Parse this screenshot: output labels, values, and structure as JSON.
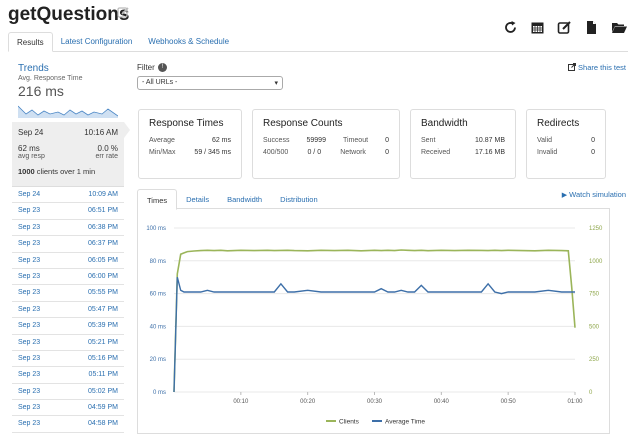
{
  "page": {
    "title": "getQuestions"
  },
  "icons": {
    "title_edit": "edit-icon",
    "toolbar": [
      "refresh-icon",
      "calendar-icon",
      "edit-icon",
      "document-icon",
      "folder-open-icon"
    ]
  },
  "tabs": [
    {
      "label": "Results",
      "active": true
    },
    {
      "label": "Latest Configuration",
      "active": false
    },
    {
      "label": "Webhooks & Schedule",
      "active": false
    }
  ],
  "sidebar": {
    "trends_title": "Trends",
    "trends_subtitle": "Avg. Response Time",
    "trends_value": "216 ms",
    "selected": {
      "date": "Sep 24",
      "time": "10:16 AM",
      "avg_resp": "62 ms",
      "avg_resp_label": "avg resp",
      "err_rate": "0.0 %",
      "err_rate_label": "err rate",
      "clients_bold": "1000",
      "clients_rest": " clients over 1 min"
    },
    "runs": [
      {
        "date": "Sep 24",
        "time": "10:09 AM"
      },
      {
        "date": "Sep 23",
        "time": "06:51 PM"
      },
      {
        "date": "Sep 23",
        "time": "06:38 PM"
      },
      {
        "date": "Sep 23",
        "time": "06:37 PM"
      },
      {
        "date": "Sep 23",
        "time": "06:05 PM"
      },
      {
        "date": "Sep 23",
        "time": "06:00 PM"
      },
      {
        "date": "Sep 23",
        "time": "05:55 PM"
      },
      {
        "date": "Sep 23",
        "time": "05:47 PM"
      },
      {
        "date": "Sep 23",
        "time": "05:39 PM"
      },
      {
        "date": "Sep 23",
        "time": "05:21 PM"
      },
      {
        "date": "Sep 23",
        "time": "05:16 PM"
      },
      {
        "date": "Sep 23",
        "time": "05:11 PM"
      },
      {
        "date": "Sep 23",
        "time": "05:02 PM"
      },
      {
        "date": "Sep 23",
        "time": "04:59 PM"
      },
      {
        "date": "Sep 23",
        "time": "04:58 PM"
      }
    ]
  },
  "filter": {
    "label": "Filter",
    "selected": "- All URLs -"
  },
  "share_label": "Share this test",
  "cards": {
    "response_times": {
      "title": "Response Times",
      "average_label": "Average",
      "average": "62 ms",
      "minmax_label": "Min/Max",
      "minmax": "59 / 345 ms"
    },
    "response_counts": {
      "title": "Response Counts",
      "success_label": "Success",
      "success": "59999",
      "timeout_label": "Timeout",
      "timeout": "0",
      "c400_label": "400/500",
      "c400": "0 / 0",
      "network_label": "Network",
      "network": "0"
    },
    "bandwidth": {
      "title": "Bandwidth",
      "sent_label": "Sent",
      "sent": "10.87 MB",
      "received_label": "Received",
      "received": "17.16 MB"
    },
    "redirects": {
      "title": "Redirects",
      "valid_label": "Valid",
      "valid": "0",
      "invalid_label": "Invalid",
      "invalid": "0"
    }
  },
  "watch_label": "Watch simulation",
  "chart_tabs": [
    {
      "label": "Times",
      "active": true
    },
    {
      "label": "Details",
      "active": false
    },
    {
      "label": "Bandwidth",
      "active": false
    },
    {
      "label": "Distribution",
      "active": false
    }
  ],
  "colors": {
    "link": "#2a6fb0",
    "clients": "#9bb55a",
    "avg_time": "#3d6fa8"
  },
  "chart_data": {
    "type": "line",
    "x_ticks": [
      "00:10",
      "00:20",
      "00:30",
      "00:40",
      "00:50",
      "01:00"
    ],
    "y_left": {
      "ticks": [
        "0 ms",
        "20 ms",
        "40 ms",
        "60 ms",
        "80 ms",
        "100 ms"
      ],
      "range": [
        0,
        100
      ]
    },
    "y_right": {
      "ticks": [
        "0",
        "250",
        "500",
        "750",
        "1000",
        "1250"
      ],
      "range": [
        0,
        1250
      ]
    },
    "grid": true,
    "legend_position": "bottom",
    "x": [
      0,
      0.5,
      1,
      1.5,
      2,
      3,
      4,
      5,
      6,
      7,
      8,
      10,
      12,
      14,
      15,
      16,
      17,
      18,
      20,
      22,
      24,
      26,
      28,
      30,
      31,
      32,
      33,
      34,
      35,
      36,
      37,
      38,
      40,
      42,
      44,
      46,
      47,
      48,
      49,
      50,
      52,
      54,
      56,
      58,
      59,
      59.5,
      60
    ],
    "series": [
      {
        "name": "Clients",
        "axis": "right",
        "values": [
          0,
          900,
          1050,
          1060,
          1070,
          1075,
          1078,
          1080,
          1078,
          1080,
          1076,
          1080,
          1078,
          1080,
          1078,
          1079,
          1080,
          1078,
          1076,
          1080,
          1078,
          1080,
          1076,
          1080,
          1078,
          1080,
          1078,
          1082,
          1080,
          1078,
          1080,
          1077,
          1080,
          1078,
          1080,
          1079,
          1078,
          1080,
          1078,
          1080,
          1078,
          1076,
          1080,
          1078,
          1076,
          800,
          490
        ]
      },
      {
        "name": "Average Time",
        "axis": "left",
        "values": [
          0,
          70,
          62,
          61,
          61,
          61,
          61,
          62,
          61,
          61,
          61,
          61,
          61,
          61,
          61,
          66,
          61,
          61,
          62,
          61,
          61,
          61,
          61,
          61,
          63,
          61,
          61,
          62,
          61,
          61,
          65,
          61,
          61,
          61,
          61,
          61,
          66,
          61,
          60,
          61,
          61,
          61,
          62,
          61,
          61,
          61,
          61
        ]
      }
    ]
  }
}
